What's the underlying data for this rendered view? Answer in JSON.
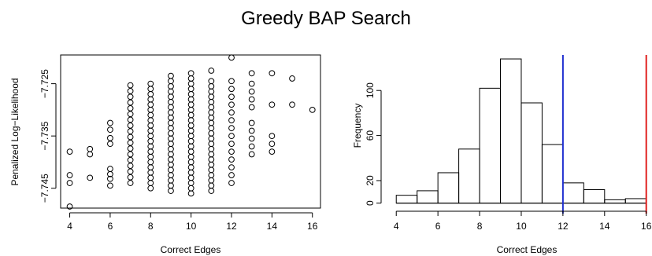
{
  "figure": {
    "title": "Greedy BAP Search"
  },
  "chart_data": [
    {
      "type": "scatter",
      "xlabel": "Correct Edges",
      "ylabel": "Penalized Log−Likelihood",
      "xlim": [
        3.55,
        16.4
      ],
      "ylim": [
        -7.7488,
        -7.7195
      ],
      "xticks": [
        4,
        6,
        8,
        10,
        12,
        14,
        16
      ],
      "yticks": [
        -7.745,
        -7.735,
        -7.725
      ],
      "ytick_labels": [
        "−7.745",
        "−7.735",
        "−7.725"
      ],
      "marker": "open-circle",
      "points": [
        [
          4,
          -7.7485
        ],
        [
          4,
          -7.744
        ],
        [
          4,
          -7.7425
        ],
        [
          4,
          -7.738
        ],
        [
          5,
          -7.743
        ],
        [
          5,
          -7.7385
        ],
        [
          5,
          -7.7375
        ],
        [
          6,
          -7.7445
        ],
        [
          6,
          -7.7432
        ],
        [
          6,
          -7.7423
        ],
        [
          6,
          -7.7413
        ],
        [
          6,
          -7.7365
        ],
        [
          6,
          -7.7354
        ],
        [
          6,
          -7.7338
        ],
        [
          6,
          -7.7325
        ],
        [
          7,
          -7.744
        ],
        [
          7,
          -7.7429
        ],
        [
          7,
          -7.7418
        ],
        [
          7,
          -7.7407
        ],
        [
          7,
          -7.7396
        ],
        [
          7,
          -7.7385
        ],
        [
          7,
          -7.7374
        ],
        [
          7,
          -7.7363
        ],
        [
          7,
          -7.7352
        ],
        [
          7,
          -7.7341
        ],
        [
          7,
          -7.733
        ],
        [
          7,
          -7.7319
        ],
        [
          7,
          -7.7308
        ],
        [
          7,
          -7.7297
        ],
        [
          7,
          -7.7286
        ],
        [
          7,
          -7.7275
        ],
        [
          7,
          -7.7264
        ],
        [
          7,
          -7.7253
        ],
        [
          8,
          -7.745
        ],
        [
          8,
          -7.744
        ],
        [
          8,
          -7.743
        ],
        [
          8,
          -7.742
        ],
        [
          8,
          -7.741
        ],
        [
          8,
          -7.74
        ],
        [
          8,
          -7.739
        ],
        [
          8,
          -7.738
        ],
        [
          8,
          -7.737
        ],
        [
          8,
          -7.736
        ],
        [
          8,
          -7.735
        ],
        [
          8,
          -7.734
        ],
        [
          8,
          -7.733
        ],
        [
          8,
          -7.732
        ],
        [
          8,
          -7.731
        ],
        [
          8,
          -7.73
        ],
        [
          8,
          -7.729
        ],
        [
          8,
          -7.728
        ],
        [
          8,
          -7.727
        ],
        [
          8,
          -7.726
        ],
        [
          8,
          -7.725
        ],
        [
          9,
          -7.7455
        ],
        [
          9,
          -7.7445
        ],
        [
          9,
          -7.7435
        ],
        [
          9,
          -7.7425
        ],
        [
          9,
          -7.7415
        ],
        [
          9,
          -7.7405
        ],
        [
          9,
          -7.7395
        ],
        [
          9,
          -7.7385
        ],
        [
          9,
          -7.7375
        ],
        [
          9,
          -7.7365
        ],
        [
          9,
          -7.7355
        ],
        [
          9,
          -7.7345
        ],
        [
          9,
          -7.7335
        ],
        [
          9,
          -7.7325
        ],
        [
          9,
          -7.7315
        ],
        [
          9,
          -7.7305
        ],
        [
          9,
          -7.7295
        ],
        [
          9,
          -7.7285
        ],
        [
          9,
          -7.7275
        ],
        [
          9,
          -7.7265
        ],
        [
          9,
          -7.7255
        ],
        [
          9,
          -7.7245
        ],
        [
          9,
          -7.7235
        ],
        [
          10,
          -7.746
        ],
        [
          10,
          -7.745
        ],
        [
          10,
          -7.744
        ],
        [
          10,
          -7.743
        ],
        [
          10,
          -7.742
        ],
        [
          10,
          -7.741
        ],
        [
          10,
          -7.74
        ],
        [
          10,
          -7.739
        ],
        [
          10,
          -7.738
        ],
        [
          10,
          -7.737
        ],
        [
          10,
          -7.736
        ],
        [
          10,
          -7.735
        ],
        [
          10,
          -7.734
        ],
        [
          10,
          -7.733
        ],
        [
          10,
          -7.732
        ],
        [
          10,
          -7.731
        ],
        [
          10,
          -7.73
        ],
        [
          10,
          -7.729
        ],
        [
          10,
          -7.728
        ],
        [
          10,
          -7.727
        ],
        [
          10,
          -7.726
        ],
        [
          10,
          -7.725
        ],
        [
          10,
          -7.724
        ],
        [
          10,
          -7.723
        ],
        [
          11,
          -7.7455
        ],
        [
          11,
          -7.7445
        ],
        [
          11,
          -7.7435
        ],
        [
          11,
          -7.7425
        ],
        [
          11,
          -7.7415
        ],
        [
          11,
          -7.7405
        ],
        [
          11,
          -7.7395
        ],
        [
          11,
          -7.7385
        ],
        [
          11,
          -7.7375
        ],
        [
          11,
          -7.7365
        ],
        [
          11,
          -7.7355
        ],
        [
          11,
          -7.7345
        ],
        [
          11,
          -7.7335
        ],
        [
          11,
          -7.7325
        ],
        [
          11,
          -7.7315
        ],
        [
          11,
          -7.7305
        ],
        [
          11,
          -7.7295
        ],
        [
          11,
          -7.7285
        ],
        [
          11,
          -7.7275
        ],
        [
          11,
          -7.7265
        ],
        [
          11,
          -7.7255
        ],
        [
          11,
          -7.7245
        ],
        [
          11,
          -7.7225
        ],
        [
          12,
          -7.744
        ],
        [
          12,
          -7.7425
        ],
        [
          12,
          -7.741
        ],
        [
          12,
          -7.7395
        ],
        [
          12,
          -7.738
        ],
        [
          12,
          -7.7365
        ],
        [
          12,
          -7.735
        ],
        [
          12,
          -7.7335
        ],
        [
          12,
          -7.732
        ],
        [
          12,
          -7.7305
        ],
        [
          12,
          -7.729
        ],
        [
          12,
          -7.7275
        ],
        [
          12,
          -7.726
        ],
        [
          12,
          -7.7245
        ],
        [
          12,
          -7.72
        ],
        [
          13,
          -7.7385
        ],
        [
          13,
          -7.737
        ],
        [
          13,
          -7.7355
        ],
        [
          13,
          -7.734
        ],
        [
          13,
          -7.7325
        ],
        [
          13,
          -7.7295
        ],
        [
          13,
          -7.728
        ],
        [
          13,
          -7.7265
        ],
        [
          13,
          -7.725
        ],
        [
          13,
          -7.723
        ],
        [
          14,
          -7.738
        ],
        [
          14,
          -7.7365
        ],
        [
          14,
          -7.735
        ],
        [
          14,
          -7.729
        ],
        [
          14,
          -7.723
        ],
        [
          15,
          -7.729
        ],
        [
          15,
          -7.724
        ],
        [
          16,
          -7.73
        ]
      ]
    },
    {
      "type": "bar",
      "xlabel": "Correct Edges",
      "ylabel": "Frequency",
      "xlim": [
        3.5,
        16.2
      ],
      "ylim": [
        -3,
        135
      ],
      "xticks": [
        4,
        6,
        8,
        10,
        12,
        14,
        16
      ],
      "yticks": [
        0,
        20,
        60,
        100
      ],
      "bin_edges": [
        4,
        5,
        6,
        7,
        8,
        9,
        10,
        11,
        12,
        13,
        14,
        15,
        16
      ],
      "counts": [
        7,
        11,
        27,
        48,
        102,
        128,
        89,
        52,
        18,
        12,
        3,
        4
      ],
      "vlines": [
        {
          "x": 12,
          "color": "#1f2fd0"
        },
        {
          "x": 16,
          "color": "#e0201f"
        }
      ]
    }
  ]
}
